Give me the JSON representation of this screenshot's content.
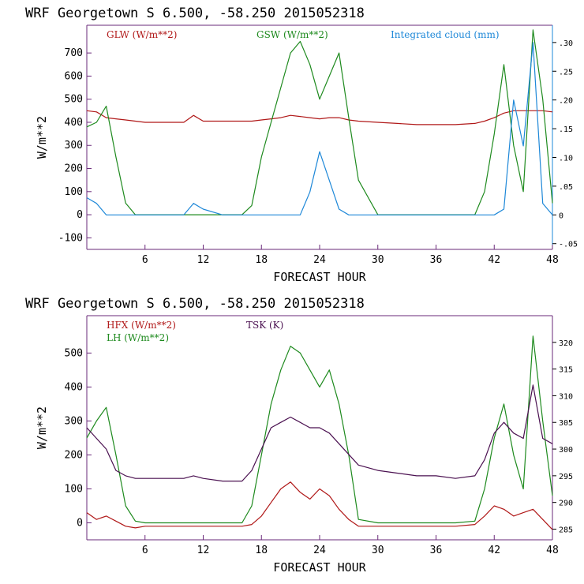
{
  "panels": [
    {
      "title": "WRF   Georgetown S   6.500, -58.250  2015052318",
      "xlabel": "FORECAST HOUR",
      "ylabel": "W/m**2",
      "xticks": [
        "6",
        "12",
        "18",
        "24",
        "30",
        "36",
        "42",
        "48"
      ],
      "yticks": [
        "-100",
        "0",
        "100",
        "200",
        "300",
        "400",
        "500",
        "600",
        "700"
      ],
      "rticks": [
        "-.05",
        "0",
        ".05",
        ".10",
        ".15",
        ".20",
        ".25",
        ".30"
      ],
      "legend": [
        {
          "label": "GLW (W/m**2)",
          "color": "#b01818"
        },
        {
          "label": "GSW (W/m**2)",
          "color": "#1e8a1e"
        },
        {
          "label": "Integrated cloud (mm)",
          "color": "#1e88d8"
        }
      ]
    },
    {
      "title": "WRF   Georgetown S   6.500, -58.250  2015052318",
      "xlabel": "FORECAST HOUR",
      "ylabel": "W/m**2",
      "xticks": [
        "6",
        "12",
        "18",
        "24",
        "30",
        "36",
        "42",
        "48"
      ],
      "yticks": [
        "0",
        "100",
        "200",
        "300",
        "400",
        "500"
      ],
      "rticks": [
        "285",
        "290",
        "295",
        "300",
        "305",
        "310",
        "315",
        "320"
      ],
      "legend": [
        {
          "label": "HFX (W/m**2)",
          "color": "#b01818"
        },
        {
          "label": "LH  (W/m**2)",
          "color": "#1e8a1e"
        },
        {
          "label": "TSK (K)",
          "color": "#4a1050"
        }
      ]
    }
  ],
  "chart_data": [
    {
      "type": "line",
      "title": "WRF   Georgetown S   6.500, -58.250  2015052318",
      "xlabel": "FORECAST HOUR",
      "ylabel": "W/m**2",
      "xlim": [
        0,
        48
      ],
      "ylim": [
        -150,
        820
      ],
      "y2lim": [
        -0.06,
        0.33
      ],
      "x": [
        0,
        1,
        2,
        3,
        4,
        5,
        6,
        8,
        10,
        11,
        12,
        14,
        16,
        17,
        18,
        19,
        20,
        21,
        22,
        23,
        24,
        25,
        26,
        27,
        28,
        30,
        32,
        34,
        36,
        38,
        40,
        41,
        42,
        43,
        44,
        45,
        46,
        47,
        48
      ],
      "series": [
        {
          "name": "GLW (W/m**2)",
          "color": "#b01818",
          "axis": "left",
          "values": [
            450,
            445,
            420,
            415,
            410,
            405,
            400,
            400,
            400,
            430,
            405,
            405,
            405,
            405,
            410,
            415,
            420,
            430,
            425,
            420,
            415,
            420,
            420,
            410,
            405,
            400,
            395,
            390,
            390,
            390,
            395,
            405,
            420,
            440,
            450,
            450,
            450,
            450,
            445
          ]
        },
        {
          "name": "GSW (W/m**2)",
          "color": "#1e8a1e",
          "axis": "left",
          "values": [
            380,
            400,
            470,
            250,
            50,
            0,
            0,
            0,
            0,
            0,
            0,
            0,
            0,
            40,
            250,
            400,
            550,
            700,
            750,
            650,
            500,
            600,
            700,
            420,
            150,
            0,
            0,
            0,
            0,
            0,
            0,
            100,
            350,
            650,
            300,
            100,
            800,
            500,
            50
          ]
        },
        {
          "name": "Integrated cloud (mm)",
          "color": "#1e88d8",
          "axis": "right",
          "values": [
            0.03,
            0.02,
            0,
            0,
            0,
            0,
            0,
            0,
            0,
            0.02,
            0.01,
            0,
            0,
            0,
            0,
            0,
            0,
            0,
            0,
            0.04,
            0.11,
            0.06,
            0.01,
            0,
            0,
            0,
            0,
            0,
            0,
            0,
            0,
            0,
            0,
            0.01,
            0.2,
            0.12,
            0.3,
            0.02,
            0
          ]
        }
      ]
    },
    {
      "type": "line",
      "title": "WRF   Georgetown S   6.500, -58.250  2015052318",
      "xlabel": "FORECAST HOUR",
      "ylabel": "W/m**2",
      "xlim": [
        0,
        48
      ],
      "ylim": [
        -50,
        610
      ],
      "y2lim": [
        283,
        325
      ],
      "x": [
        0,
        1,
        2,
        3,
        4,
        5,
        6,
        8,
        10,
        11,
        12,
        14,
        16,
        17,
        18,
        19,
        20,
        21,
        22,
        23,
        24,
        25,
        26,
        27,
        28,
        30,
        32,
        34,
        36,
        38,
        40,
        41,
        42,
        43,
        44,
        45,
        46,
        47,
        48
      ],
      "series": [
        {
          "name": "HFX (W/m**2)",
          "color": "#b01818",
          "axis": "left",
          "values": [
            30,
            10,
            20,
            5,
            -10,
            -15,
            -10,
            -10,
            -10,
            -10,
            -10,
            -10,
            -10,
            -5,
            20,
            60,
            100,
            120,
            90,
            70,
            100,
            80,
            40,
            10,
            -10,
            -10,
            -10,
            -10,
            -10,
            -10,
            -5,
            20,
            50,
            40,
            20,
            30,
            40,
            10,
            -20
          ]
        },
        {
          "name": "LH  (W/m**2)",
          "color": "#1e8a1e",
          "axis": "left",
          "values": [
            250,
            300,
            340,
            200,
            50,
            5,
            0,
            0,
            0,
            0,
            0,
            0,
            0,
            50,
            200,
            350,
            450,
            520,
            500,
            450,
            400,
            450,
            350,
            200,
            10,
            0,
            0,
            0,
            0,
            0,
            5,
            100,
            250,
            350,
            200,
            100,
            550,
            300,
            80
          ]
        },
        {
          "name": "TSK (K)",
          "color": "#4a1050",
          "axis": "right",
          "values": [
            304,
            302,
            300,
            296,
            295,
            294.5,
            294.5,
            294.5,
            294.5,
            295,
            294.5,
            294,
            294,
            296,
            300,
            304,
            305,
            306,
            305,
            304,
            304,
            303,
            301,
            299,
            297,
            296,
            295.5,
            295,
            295,
            294.5,
            295,
            298,
            303,
            305,
            303,
            302,
            312,
            302,
            301
          ]
        }
      ]
    }
  ]
}
